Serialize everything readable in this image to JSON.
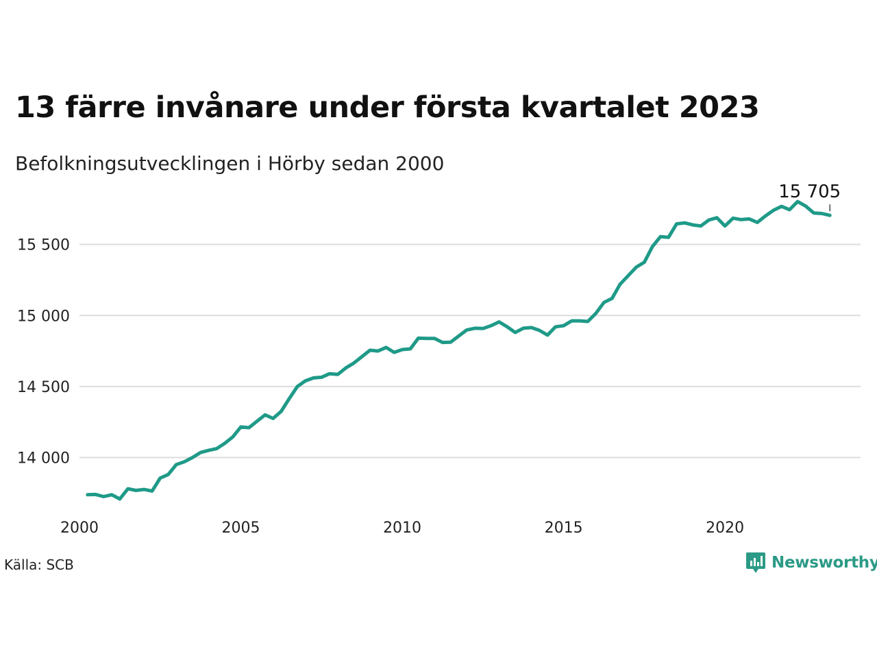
{
  "title": "13 färre invånare under första kvartalet 2023",
  "subtitle": "Befolkningsutvecklingen i Hörby sedan 2000",
  "source": "Källa: SCB",
  "brand": {
    "name": "Newsworthy",
    "icon": "newsworthy-logo-icon",
    "color": "#2b9a86"
  },
  "colors": {
    "line": "#1f9a88",
    "grid": "#dddddd",
    "text": "#111111"
  },
  "chart_data": {
    "type": "line",
    "title": "13 färre invånare under första kvartalet 2023",
    "xlabel": "",
    "ylabel": "",
    "xlim": [
      2000,
      2024.2
    ],
    "ylim": [
      13650,
      15870
    ],
    "grid": "horizontal",
    "x_ticks": [
      2000,
      2005,
      2010,
      2015,
      2020
    ],
    "x_tick_labels": [
      "2000",
      "2005",
      "2010",
      "2015",
      "2020"
    ],
    "y_ticks": [
      14000,
      14500,
      15000,
      15500
    ],
    "y_tick_labels": [
      "14 000",
      "14 500",
      "15 000",
      "15 500"
    ],
    "end_label": "15 705",
    "series": [
      {
        "values": [
          {
            "x": 2000.25,
            "y": 13738
          },
          {
            "x": 2000.5,
            "y": 13740
          },
          {
            "x": 2000.75,
            "y": 13725
          },
          {
            "x": 2001.0,
            "y": 13738
          },
          {
            "x": 2001.25,
            "y": 13708
          },
          {
            "x": 2001.5,
            "y": 13780
          },
          {
            "x": 2001.75,
            "y": 13768
          },
          {
            "x": 2002.0,
            "y": 13775
          },
          {
            "x": 2002.25,
            "y": 13764
          },
          {
            "x": 2002.5,
            "y": 13855
          },
          {
            "x": 2002.75,
            "y": 13880
          },
          {
            "x": 2003.0,
            "y": 13950
          },
          {
            "x": 2003.25,
            "y": 13970
          },
          {
            "x": 2003.5,
            "y": 14000
          },
          {
            "x": 2003.75,
            "y": 14035
          },
          {
            "x": 2004.0,
            "y": 14050
          },
          {
            "x": 2004.25,
            "y": 14062
          },
          {
            "x": 2004.5,
            "y": 14100
          },
          {
            "x": 2004.75,
            "y": 14145
          },
          {
            "x": 2005.0,
            "y": 14215
          },
          {
            "x": 2005.25,
            "y": 14210
          },
          {
            "x": 2005.5,
            "y": 14255
          },
          {
            "x": 2005.75,
            "y": 14300
          },
          {
            "x": 2006.0,
            "y": 14275
          },
          {
            "x": 2006.25,
            "y": 14325
          },
          {
            "x": 2006.5,
            "y": 14415
          },
          {
            "x": 2006.75,
            "y": 14500
          },
          {
            "x": 2007.0,
            "y": 14540
          },
          {
            "x": 2007.25,
            "y": 14560
          },
          {
            "x": 2007.5,
            "y": 14565
          },
          {
            "x": 2007.75,
            "y": 14590
          },
          {
            "x": 2008.0,
            "y": 14585
          },
          {
            "x": 2008.25,
            "y": 14630
          },
          {
            "x": 2008.5,
            "y": 14665
          },
          {
            "x": 2008.75,
            "y": 14710
          },
          {
            "x": 2009.0,
            "y": 14755
          },
          {
            "x": 2009.25,
            "y": 14750
          },
          {
            "x": 2009.5,
            "y": 14775
          },
          {
            "x": 2009.75,
            "y": 14740
          },
          {
            "x": 2010.0,
            "y": 14760
          },
          {
            "x": 2010.25,
            "y": 14765
          },
          {
            "x": 2010.5,
            "y": 14840
          },
          {
            "x": 2010.75,
            "y": 14838
          },
          {
            "x": 2011.0,
            "y": 14838
          },
          {
            "x": 2011.25,
            "y": 14810
          },
          {
            "x": 2011.5,
            "y": 14812
          },
          {
            "x": 2011.75,
            "y": 14855
          },
          {
            "x": 2012.0,
            "y": 14898
          },
          {
            "x": 2012.25,
            "y": 14910
          },
          {
            "x": 2012.5,
            "y": 14908
          },
          {
            "x": 2012.75,
            "y": 14928
          },
          {
            "x": 2013.0,
            "y": 14955
          },
          {
            "x": 2013.25,
            "y": 14920
          },
          {
            "x": 2013.5,
            "y": 14880
          },
          {
            "x": 2013.75,
            "y": 14910
          },
          {
            "x": 2014.0,
            "y": 14915
          },
          {
            "x": 2014.25,
            "y": 14895
          },
          {
            "x": 2014.5,
            "y": 14862
          },
          {
            "x": 2014.75,
            "y": 14920
          },
          {
            "x": 2015.0,
            "y": 14928
          },
          {
            "x": 2015.25,
            "y": 14962
          },
          {
            "x": 2015.5,
            "y": 14962
          },
          {
            "x": 2015.75,
            "y": 14958
          },
          {
            "x": 2016.0,
            "y": 15015
          },
          {
            "x": 2016.25,
            "y": 15092
          },
          {
            "x": 2016.5,
            "y": 15120
          },
          {
            "x": 2016.75,
            "y": 15220
          },
          {
            "x": 2017.0,
            "y": 15280
          },
          {
            "x": 2017.25,
            "y": 15340
          },
          {
            "x": 2017.5,
            "y": 15375
          },
          {
            "x": 2017.75,
            "y": 15485
          },
          {
            "x": 2018.0,
            "y": 15555
          },
          {
            "x": 2018.25,
            "y": 15550
          },
          {
            "x": 2018.5,
            "y": 15645
          },
          {
            "x": 2018.75,
            "y": 15652
          },
          {
            "x": 2019.0,
            "y": 15638
          },
          {
            "x": 2019.25,
            "y": 15630
          },
          {
            "x": 2019.5,
            "y": 15672
          },
          {
            "x": 2019.75,
            "y": 15688
          },
          {
            "x": 2020.0,
            "y": 15630
          },
          {
            "x": 2020.25,
            "y": 15685
          },
          {
            "x": 2020.5,
            "y": 15675
          },
          {
            "x": 2020.75,
            "y": 15680
          },
          {
            "x": 2021.0,
            "y": 15655
          },
          {
            "x": 2021.25,
            "y": 15700
          },
          {
            "x": 2021.5,
            "y": 15740
          },
          {
            "x": 2021.75,
            "y": 15768
          },
          {
            "x": 2022.0,
            "y": 15745
          },
          {
            "x": 2022.25,
            "y": 15802
          },
          {
            "x": 2022.5,
            "y": 15770
          },
          {
            "x": 2022.75,
            "y": 15722
          },
          {
            "x": 2023.0,
            "y": 15718
          },
          {
            "x": 2023.25,
            "y": 15705
          }
        ]
      }
    ]
  }
}
